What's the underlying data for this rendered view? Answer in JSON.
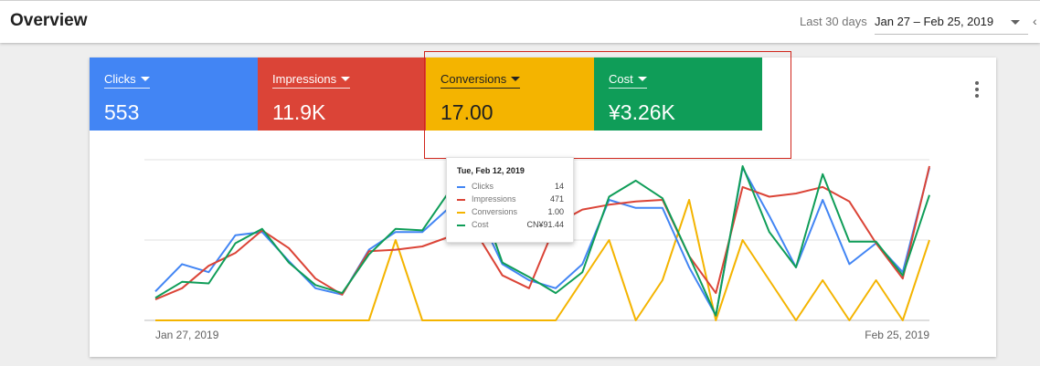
{
  "header": {
    "title": "Overview",
    "range_label": "Last 30 days",
    "date_range": "Jan 27 – Feb 25, 2019",
    "prev_icon": "chevron-left-icon"
  },
  "metrics": [
    {
      "label": "Clicks",
      "value": "553",
      "color": "#4285f4"
    },
    {
      "label": "Impressions",
      "value": "11.9K",
      "color": "#db4437"
    },
    {
      "label": "Conversions",
      "value": "17.00",
      "color": "#f4b400"
    },
    {
      "label": "Cost",
      "value": "¥3.26K",
      "color": "#0f9d58"
    }
  ],
  "menu_icon": "more-vert-icon",
  "tooltip": {
    "date": "Tue, Feb 12, 2019",
    "rows": [
      {
        "name": "Clicks",
        "value": "14",
        "color": "#4285f4"
      },
      {
        "name": "Impressions",
        "value": "471",
        "color": "#db4437"
      },
      {
        "name": "Conversions",
        "value": "1.00",
        "color": "#f4b400"
      },
      {
        "name": "Cost",
        "value": "CN¥91.44",
        "color": "#0f9d58"
      }
    ]
  },
  "chart_data": {
    "type": "line",
    "x_start": "Jan 27, 2019",
    "x_end": "Feb 25, 2019",
    "x_labels": [
      "Jan 27, 2019",
      "Feb 25, 2019"
    ],
    "grid": true,
    "series": [
      {
        "name": "Clicks",
        "color": "#4285f4",
        "values": [
          0.18,
          0.35,
          0.3,
          0.53,
          0.55,
          0.37,
          0.2,
          0.16,
          0.44,
          0.55,
          0.55,
          0.7,
          0.7,
          0.35,
          0.25,
          0.2,
          0.35,
          0.75,
          0.7,
          0.7,
          0.33,
          0.03,
          0.95,
          0.65,
          0.33,
          0.75,
          0.35,
          0.48,
          0.3,
          0.95
        ]
      },
      {
        "name": "Impressions",
        "color": "#db4437",
        "values": [
          0.13,
          0.2,
          0.34,
          0.42,
          0.56,
          0.45,
          0.26,
          0.16,
          0.43,
          0.44,
          0.46,
          0.52,
          0.55,
          0.28,
          0.2,
          0.6,
          0.69,
          0.72,
          0.74,
          0.75,
          0.4,
          0.17,
          0.83,
          0.77,
          0.79,
          0.83,
          0.74,
          0.48,
          0.26,
          0.96
        ]
      },
      {
        "name": "Conversions",
        "color": "#f4b400",
        "values": [
          0,
          0,
          0,
          0,
          0,
          0,
          0,
          0,
          0,
          0.5,
          0,
          0,
          0,
          0,
          0,
          0,
          0.25,
          0.5,
          0,
          0.25,
          0.75,
          0,
          0.5,
          0.25,
          0,
          0.25,
          0,
          0.25,
          0,
          0.5
        ]
      },
      {
        "name": "Cost",
        "color": "#0f9d58",
        "values": [
          0.14,
          0.24,
          0.23,
          0.48,
          0.57,
          0.36,
          0.22,
          0.17,
          0.41,
          0.57,
          0.56,
          0.8,
          0.83,
          0.36,
          0.27,
          0.17,
          0.3,
          0.77,
          0.87,
          0.76,
          0.4,
          0.03,
          0.96,
          0.55,
          0.33,
          0.91,
          0.49,
          0.49,
          0.28,
          0.78
        ]
      }
    ]
  }
}
